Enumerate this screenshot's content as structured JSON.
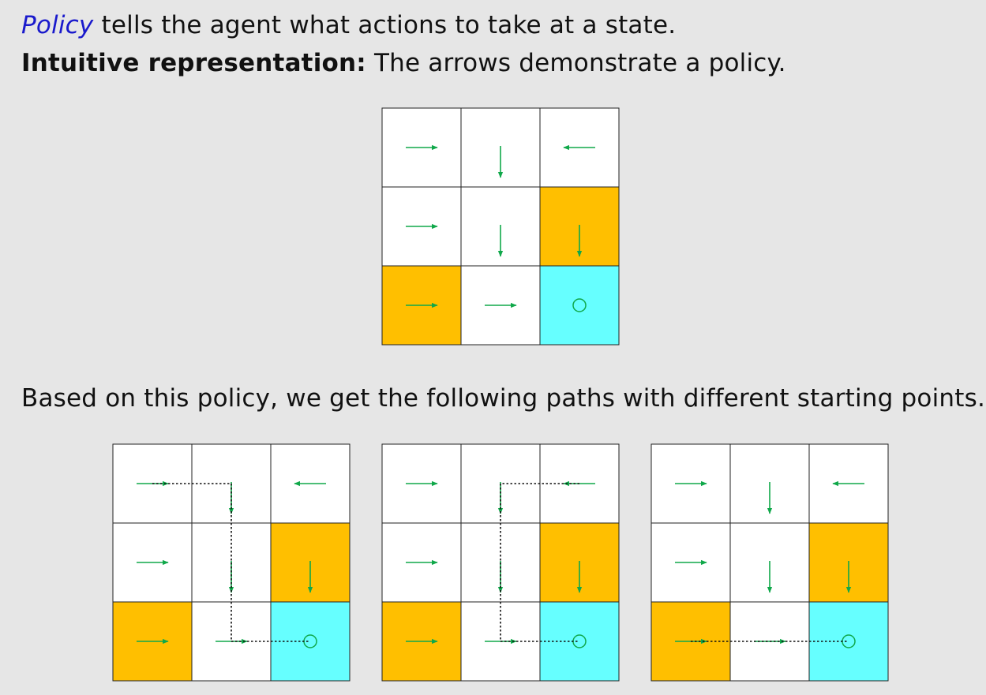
{
  "text": {
    "line1_policy": "Policy",
    "line1_rest": " tells the agent what actions to take at a state.",
    "line2_bold": "Intuitive representation:",
    "line2_rest": " The arrows demonstrate a policy.",
    "line3": "Based on this policy, we get the following paths with different starting points."
  },
  "colors": {
    "background": "#e6e6e6",
    "cell_normal": "#ffffff",
    "cell_forbidden": "#ffbf00",
    "cell_target": "#66ffff",
    "arrow": "#10a84a",
    "path": "#111111",
    "grid_line": "#222222",
    "policy_word": "#1a1acc"
  },
  "gridworld": {
    "rows": 3,
    "cols": 3,
    "cell_types": [
      [
        "normal",
        "normal",
        "normal"
      ],
      [
        "normal",
        "normal",
        "forbidden"
      ],
      [
        "forbidden",
        "normal",
        "target"
      ]
    ],
    "policy": [
      [
        "right",
        "down",
        "left"
      ],
      [
        "right",
        "down",
        "down"
      ],
      [
        "right",
        "right",
        "stay"
      ]
    ]
  },
  "paths": [
    {
      "start": [
        0,
        0
      ],
      "cells": [
        [
          0,
          0
        ],
        [
          0,
          1
        ],
        [
          1,
          1
        ],
        [
          2,
          1
        ],
        [
          2,
          2
        ]
      ]
    },
    {
      "start": [
        0,
        2
      ],
      "cells": [
        [
          0,
          2
        ],
        [
          0,
          1
        ],
        [
          1,
          1
        ],
        [
          2,
          1
        ],
        [
          2,
          2
        ]
      ]
    },
    {
      "start": [
        2,
        0
      ],
      "cells": [
        [
          2,
          0
        ],
        [
          2,
          1
        ],
        [
          2,
          2
        ]
      ]
    }
  ]
}
